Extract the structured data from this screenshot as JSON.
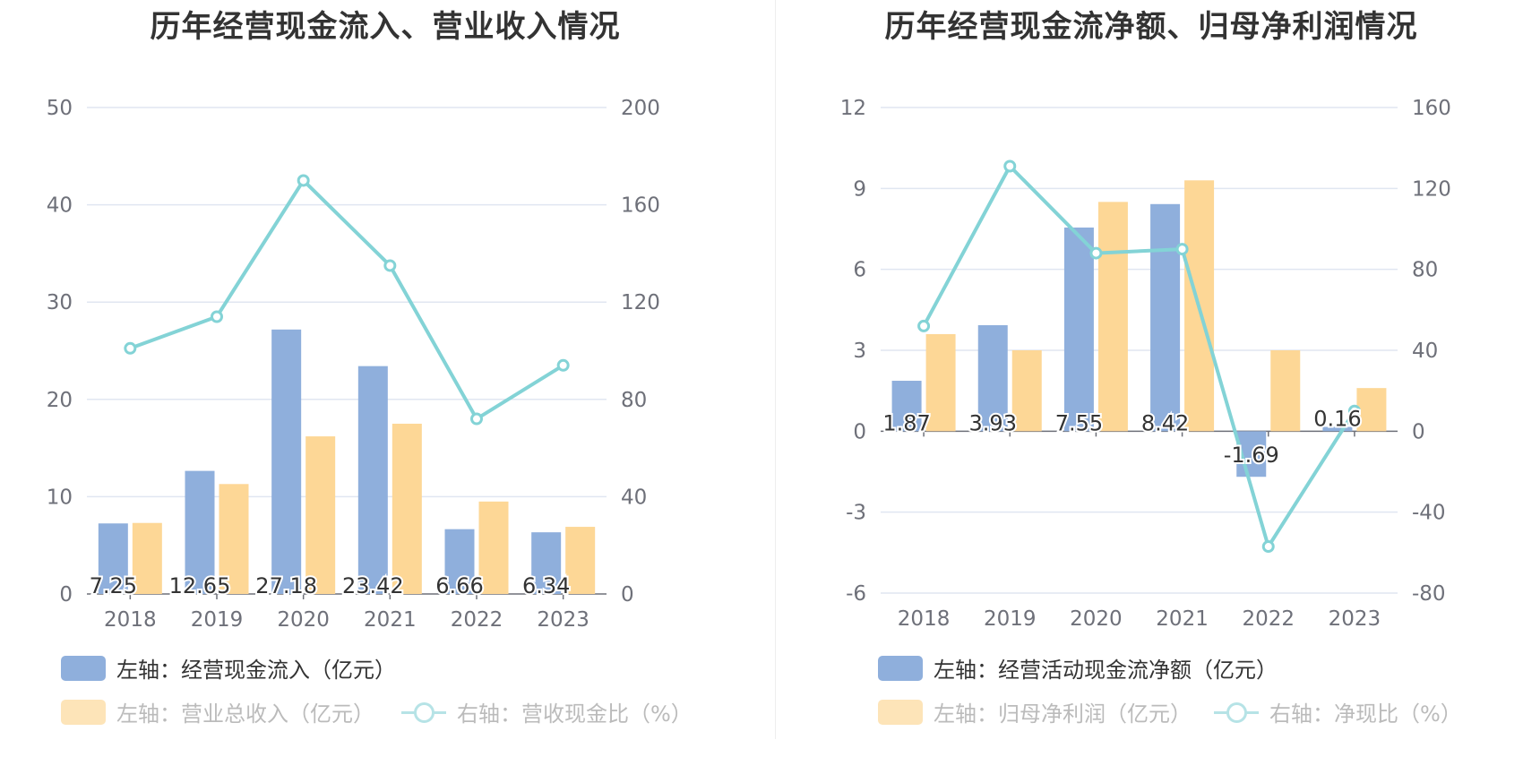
{
  "chart_data": [
    {
      "type": "bar",
      "title": "历年经营现金流入、营业收入情况",
      "categories": [
        "2018",
        "2019",
        "2020",
        "2021",
        "2022",
        "2023"
      ],
      "left_axis": {
        "min": 0,
        "max": 50,
        "step": 10,
        "ticks": [
          "0",
          "10",
          "20",
          "30",
          "40",
          "50"
        ]
      },
      "right_axis": {
        "min": 0,
        "max": 200,
        "step": 40,
        "ticks": [
          "0",
          "40",
          "80",
          "120",
          "160",
          "200"
        ]
      },
      "grid": true,
      "legend_placement": "bottom-left",
      "series": [
        {
          "name": "左轴：经营现金流入（亿元）",
          "kind": "bar",
          "axis": "left",
          "color": "#8fafdc",
          "values": [
            7.25,
            12.65,
            27.18,
            23.42,
            6.66,
            6.34
          ],
          "labels": [
            "7.25",
            "12.65",
            "27.18",
            "23.42",
            "6.66",
            "6.34"
          ]
        },
        {
          "name": "左轴：营业总收入（亿元）",
          "kind": "bar",
          "axis": "left",
          "color": "#fdd796",
          "values": [
            7.3,
            11.3,
            16.2,
            17.5,
            9.5,
            6.9
          ]
        },
        {
          "name": "右轴：营收现金比（%）",
          "kind": "line",
          "axis": "right",
          "color": "#83d3d6",
          "values": [
            101,
            114,
            170,
            135,
            72,
            94
          ]
        }
      ]
    },
    {
      "type": "bar",
      "title": "历年经营现金流净额、归母净利润情况",
      "categories": [
        "2018",
        "2019",
        "2020",
        "2021",
        "2022",
        "2023"
      ],
      "left_axis": {
        "min": -6,
        "max": 12,
        "step": 3,
        "ticks": [
          "-6",
          "-3",
          "0",
          "3",
          "6",
          "9",
          "12"
        ]
      },
      "right_axis": {
        "min": -80,
        "max": 160,
        "step": 40,
        "ticks": [
          "-80",
          "-40",
          "0",
          "40",
          "80",
          "120",
          "160"
        ]
      },
      "grid": true,
      "legend_placement": "bottom-left",
      "series": [
        {
          "name": "左轴：经营活动现金流净额（亿元）",
          "kind": "bar",
          "axis": "left",
          "color": "#8fafdc",
          "values": [
            1.87,
            3.93,
            7.55,
            8.42,
            -1.69,
            0.16
          ],
          "labels": [
            "1.87",
            "3.93",
            "7.55",
            "8.42",
            "-1.69",
            "0.16"
          ]
        },
        {
          "name": "左轴：归母净利润（亿元）",
          "kind": "bar",
          "axis": "left",
          "color": "#fdd796",
          "values": [
            3.6,
            3.0,
            8.5,
            9.3,
            3.0,
            1.6
          ]
        },
        {
          "name": "右轴：净现比（%）",
          "kind": "line",
          "axis": "right",
          "color": "#83d3d6",
          "values": [
            52,
            131,
            88,
            90,
            -57,
            10
          ]
        }
      ]
    }
  ]
}
